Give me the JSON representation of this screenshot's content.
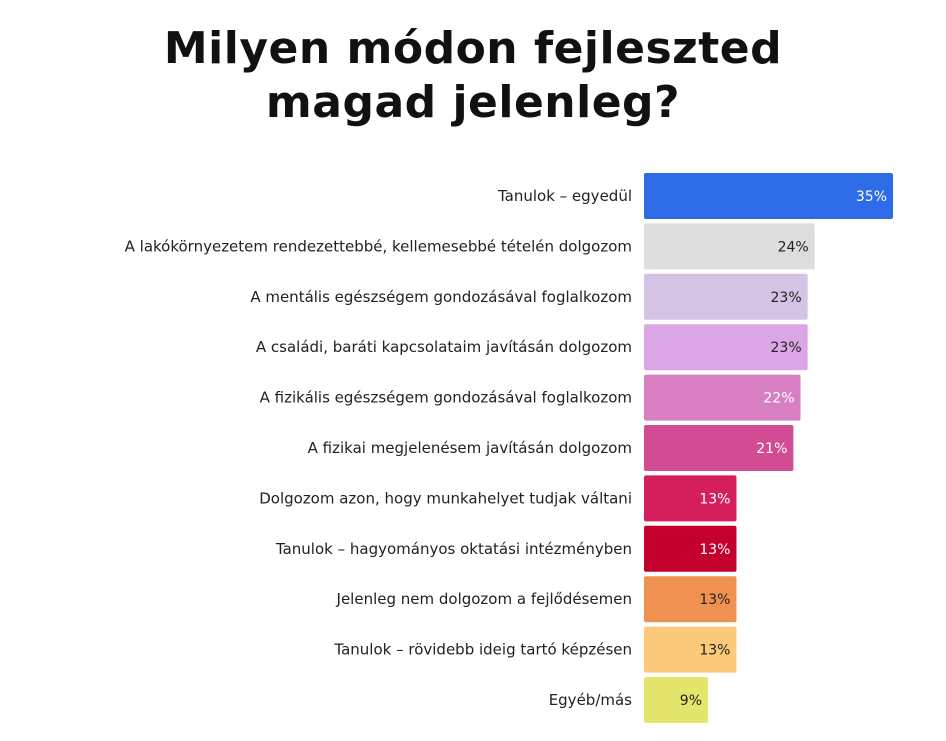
{
  "chart_data": {
    "type": "bar",
    "orientation": "horizontal",
    "title_lines": [
      "Milyen módon fejleszted",
      "magad jelenleg?"
    ],
    "value_suffix": "%",
    "grid": false,
    "legend": "none",
    "xlim": [
      0,
      35
    ],
    "categories": [
      "Tanulok – egyedül",
      "A lakókörnyezetem rendezettebbé, kellemesebbé tételén dolgozom",
      "A mentális egészségem gondozásával foglalkozom",
      "A családi, baráti kapcsolataim javításán dolgozom",
      "A fizikális egészségem gondozásával foglalkozom",
      "A fizikai megjelenésem javításán dolgozom",
      "Dolgozom azon, hogy munkahelyet tudjak váltani",
      "Tanulok – hagyományos oktatási intézményben",
      "Jelenleg nem dolgozom a fejlődésemen",
      "Tanulok – rövidebb ideig tartó képzésen",
      "Egyéb/más"
    ],
    "values": [
      35,
      24,
      23,
      23,
      22,
      21,
      13,
      13,
      13,
      13,
      9
    ],
    "bar_colors": [
      "#2e6be6",
      "#dddddd",
      "#d5c3e6",
      "#dca6e6",
      "#d77fc2",
      "#d24c93",
      "#d41f5c",
      "#c4002e",
      "#ef9150",
      "#fcc97b",
      "#e3e66a"
    ],
    "label_colors": [
      "#ffffff",
      "#222222",
      "#222222",
      "#222222",
      "#ffffff",
      "#ffffff",
      "#ffffff",
      "#ffffff",
      "#222222",
      "#222222",
      "#222222"
    ]
  }
}
